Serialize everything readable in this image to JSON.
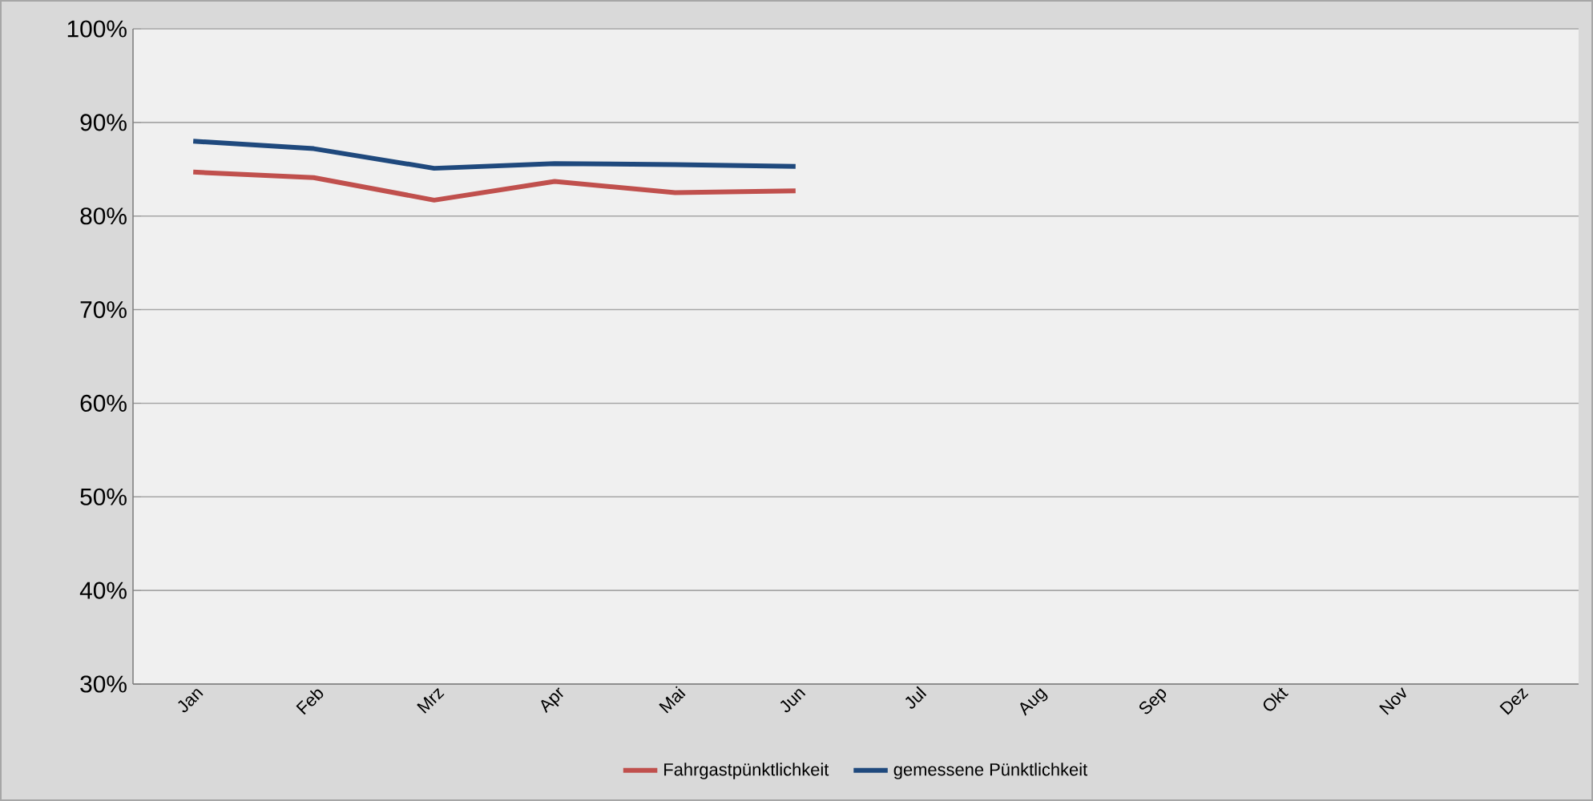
{
  "chart_data": {
    "type": "line",
    "categories": [
      "Jan",
      "Feb",
      "Mrz",
      "Apr",
      "Mai",
      "Jun",
      "Jul",
      "Aug",
      "Sep",
      "Okt",
      "Nov",
      "Dez"
    ],
    "series": [
      {
        "name": "Fahrgastpünktlichkeit",
        "color": "#c0504d",
        "values": [
          84.7,
          84.1,
          81.7,
          83.7,
          82.5,
          82.7,
          null,
          null,
          null,
          null,
          null,
          null
        ]
      },
      {
        "name": "gemessene Pünktlichkeit",
        "color": "#1f497d",
        "values": [
          88.0,
          87.2,
          85.1,
          85.6,
          85.5,
          85.3,
          null,
          null,
          null,
          null,
          null,
          null
        ]
      }
    ],
    "ylim": [
      30,
      100
    ],
    "yticks": [
      {
        "value": 30,
        "label": "30%"
      },
      {
        "value": 40,
        "label": "40%"
      },
      {
        "value": 50,
        "label": "50%"
      },
      {
        "value": 60,
        "label": "60%"
      },
      {
        "value": 70,
        "label": "70%"
      },
      {
        "value": 80,
        "label": "80%"
      },
      {
        "value": 90,
        "label": "90%"
      },
      {
        "value": 100,
        "label": "100%"
      }
    ],
    "grid": "y",
    "legend": "bottom"
  }
}
